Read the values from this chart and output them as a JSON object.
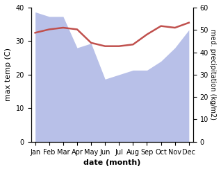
{
  "months": [
    "Jan",
    "Feb",
    "Mar",
    "Apr",
    "May",
    "Jun",
    "Jul",
    "Aug",
    "Sep",
    "Oct",
    "Nov",
    "Dec"
  ],
  "temp": [
    32.5,
    33.5,
    34.0,
    33.5,
    29.5,
    28.5,
    28.5,
    29.0,
    32.0,
    34.5,
    34.0,
    35.5
  ],
  "precip": [
    58,
    56,
    56,
    42,
    44,
    28,
    30,
    32,
    32,
    36,
    42,
    50
  ],
  "temp_color": "#c0504d",
  "precip_fill_color": "#b8c0e8",
  "ylim_temp": [
    0,
    40
  ],
  "ylim_precip": [
    0,
    60
  ],
  "xlabel": "date (month)",
  "ylabel_left": "max temp (C)",
  "ylabel_right": "med. precipitation (kg/m2)",
  "bg_color": "#ffffff",
  "temp_lw": 1.8,
  "tick_fontsize": 7,
  "xlabel_fontsize": 8,
  "ylabel_fontsize": 8,
  "ylabel_right_fontsize": 7
}
